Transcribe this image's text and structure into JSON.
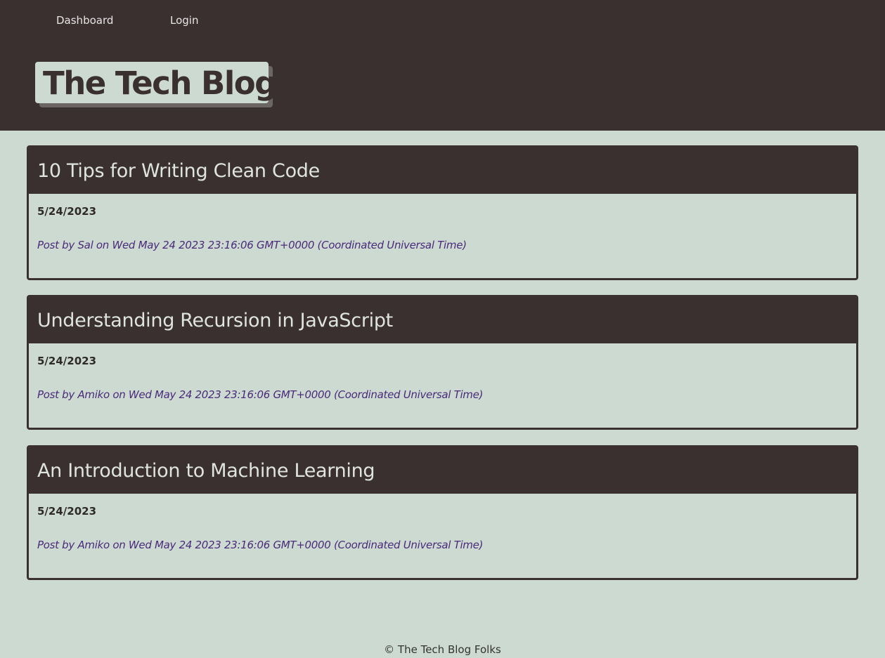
{
  "nav": {
    "dashboard": "Dashboard",
    "login": "Login"
  },
  "header": {
    "title": "The Tech Blog"
  },
  "posts": [
    {
      "title": "10 Tips for Writing Clean Code",
      "date": "5/24/2023",
      "meta": "Post by Sal on Wed May 24 2023 23:16:06 GMT+0000 (Coordinated Universal Time)"
    },
    {
      "title": "Understanding Recursion in JavaScript",
      "date": "5/24/2023",
      "meta": "Post by Amiko on Wed May 24 2023 23:16:06 GMT+0000 (Coordinated Universal Time)"
    },
    {
      "title": "An Introduction to Machine Learning",
      "date": "5/24/2023",
      "meta": "Post by Amiko on Wed May 24 2023 23:16:06 GMT+0000 (Coordinated Universal Time)"
    }
  ],
  "footer": {
    "text": "© The Tech Blog Folks"
  },
  "colors": {
    "dark": "#3a3030",
    "light": "#cddad1",
    "meta": "#4a2a7a"
  }
}
